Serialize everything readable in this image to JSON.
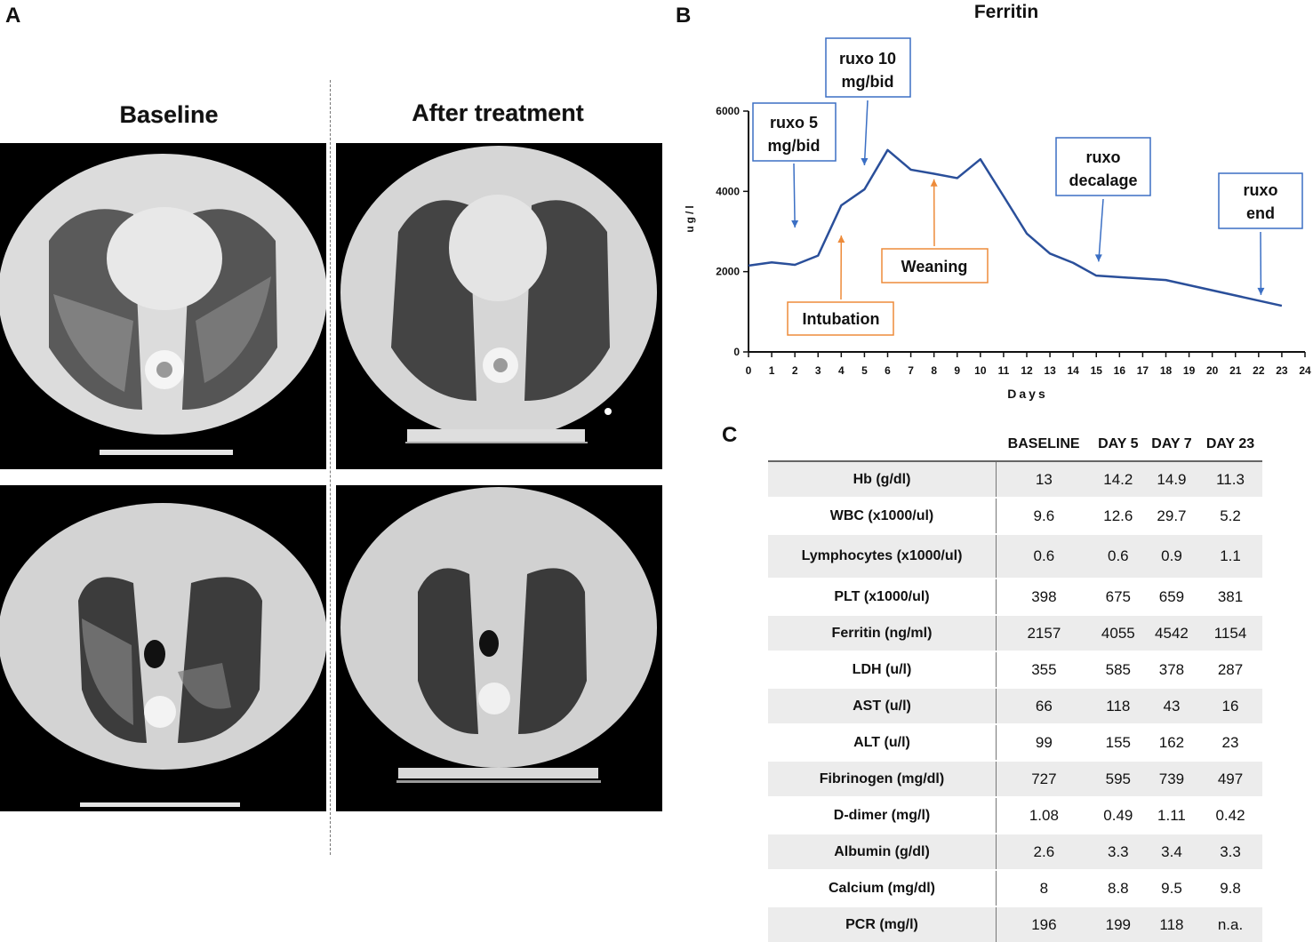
{
  "panels": {
    "a": "A",
    "b": "B",
    "c": "C"
  },
  "ct_headers": {
    "baseline": "Baseline",
    "after": "After treatment"
  },
  "chart_data": {
    "type": "line",
    "title": "Ferritin",
    "xlabel": "Days",
    "ylabel": "ug/l",
    "xlim": [
      0,
      24
    ],
    "ylim": [
      0,
      6000
    ],
    "x_ticks": [
      0,
      1,
      2,
      3,
      4,
      5,
      6,
      7,
      8,
      9,
      10,
      11,
      12,
      13,
      14,
      15,
      16,
      17,
      18,
      19,
      20,
      21,
      22,
      23,
      24
    ],
    "y_ticks": [
      0,
      2000,
      4000,
      6000
    ],
    "series": [
      {
        "color": "#2a4f9a",
        "x": [
          0,
          1,
          2,
          3,
          4,
          5,
          6,
          7,
          8,
          9,
          10,
          11,
          12,
          13,
          14,
          15,
          18,
          23
        ],
        "y": [
          2150,
          2230,
          2170,
          2400,
          3650,
          4050,
          5030,
          4540,
          4440,
          4330,
          4800,
          3880,
          2950,
          2450,
          2220,
          1900,
          1790,
          1150
        ]
      }
    ],
    "annotations": [
      {
        "label": [
          "ruxo 5",
          "mg/bid"
        ],
        "color": "#3b6fc4",
        "arrow_x": 2,
        "arrow_y": 3100
      },
      {
        "label": [
          "ruxo 10",
          "mg/bid"
        ],
        "color": "#3b6fc4",
        "arrow_x": 5,
        "arrow_y": 4650
      },
      {
        "label": [
          "ruxo",
          "decalage"
        ],
        "color": "#3b6fc4",
        "arrow_x": 15.1,
        "arrow_y": 2250
      },
      {
        "label": [
          "ruxo",
          "end"
        ],
        "color": "#3b6fc4",
        "arrow_x": 22.1,
        "arrow_y": 1420
      },
      {
        "label": [
          "Intubation"
        ],
        "color": "#ed8b3a",
        "arrow_x": 4,
        "arrow_y": 2900
      },
      {
        "label": [
          "Weaning"
        ],
        "color": "#ed8b3a",
        "arrow_x": 8,
        "arrow_y": 4300
      }
    ]
  },
  "lab_table": {
    "columns": [
      "",
      "BASELINE",
      "DAY 5",
      "DAY 7",
      "DAY 23"
    ],
    "rows": [
      {
        "label": "Hb (g/dl)",
        "values": [
          "13",
          "14.2",
          "14.9",
          "11.3"
        ]
      },
      {
        "label": "WBC (x1000/ul)",
        "values": [
          "9.6",
          "12.6",
          "29.7",
          "5.2"
        ]
      },
      {
        "label": "Lymphocytes (x1000/ul)",
        "values": [
          "0.6",
          "0.6",
          "0.9",
          "1.1"
        ]
      },
      {
        "label": "PLT (x1000/ul)",
        "values": [
          "398",
          "675",
          "659",
          "381"
        ]
      },
      {
        "label": "Ferritin (ng/ml)",
        "values": [
          "2157",
          "4055",
          "4542",
          "1154"
        ]
      },
      {
        "label": "LDH (u/l)",
        "values": [
          "355",
          "585",
          "378",
          "287"
        ]
      },
      {
        "label": "AST (u/l)",
        "values": [
          "66",
          "118",
          "43",
          "16"
        ]
      },
      {
        "label": "ALT (u/l)",
        "values": [
          "99",
          "155",
          "162",
          "23"
        ]
      },
      {
        "label": "Fibrinogen (mg/dl)",
        "values": [
          "727",
          "595",
          "739",
          "497"
        ]
      },
      {
        "label": "D-dimer (mg/l)",
        "values": [
          "1.08",
          "0.49",
          "1.11",
          "0.42"
        ]
      },
      {
        "label": "Albumin (g/dl)",
        "values": [
          "2.6",
          "3.3",
          "3.4",
          "3.3"
        ]
      },
      {
        "label": "Calcium (mg/dl)",
        "values": [
          "8",
          "8.8",
          "9.5",
          "9.8"
        ]
      },
      {
        "label": "PCR (mg/l)",
        "values": [
          "196",
          "199",
          "118",
          "n.a."
        ]
      }
    ]
  }
}
